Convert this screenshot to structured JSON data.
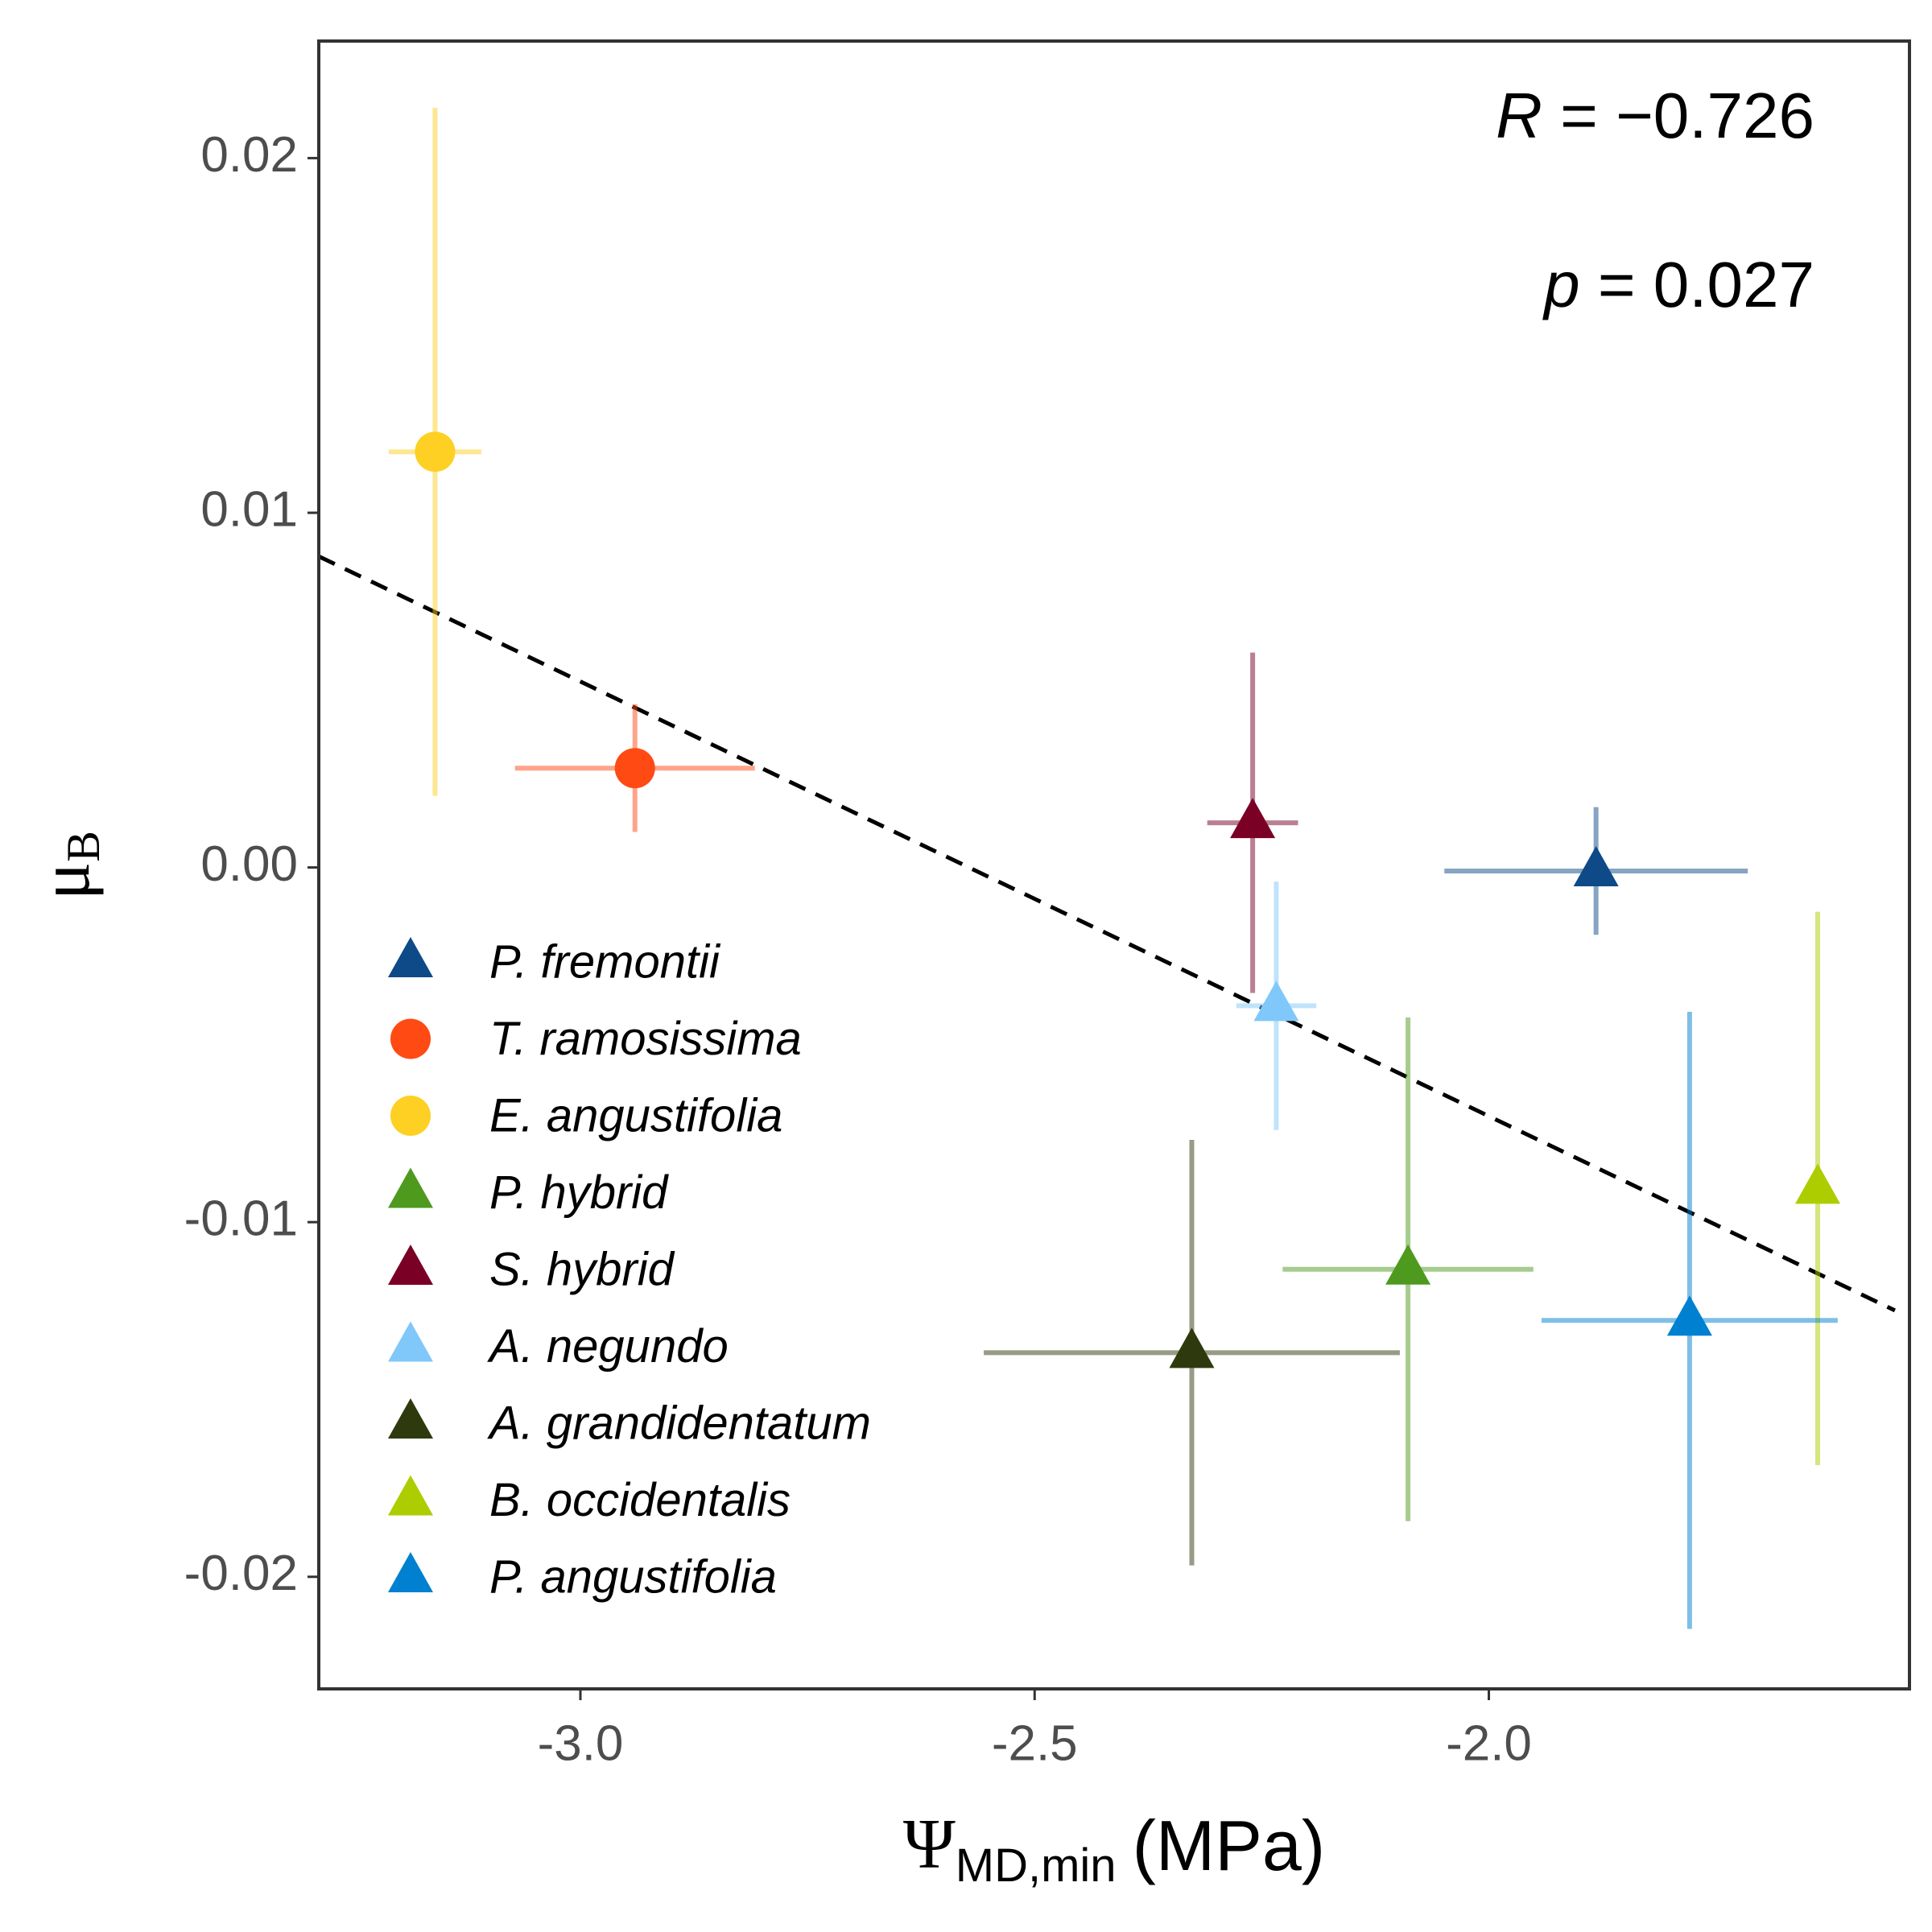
{
  "chart_data": {
    "type": "scatter",
    "x_label": {
      "symbol": "Ψ",
      "sub": "MD,min",
      "suffix": "(MPa)"
    },
    "y_label": {
      "symbol": "μ",
      "sub": "B"
    },
    "annotations": [
      {
        "symbol": "R",
        "text": "= −0.726"
      },
      {
        "symbol": "p",
        "text": "= 0.027"
      }
    ],
    "xlim": [
      -3.288,
      -1.537
    ],
    "ylim": [
      -0.02316,
      0.0233
    ],
    "xticks": [
      {
        "value": -3,
        "label": "-3.0"
      },
      -2.5,
      {
        "value": -2,
        "label": "-2.0"
      }
    ],
    "yticks": [
      0.02,
      0.01,
      {
        "value": 0,
        "label": "0.00"
      },
      -0.01,
      -0.02
    ],
    "grid": false,
    "legend_position": "bottom-left",
    "fit_line": {
      "x": [
        -3.288,
        -1.553
      ],
      "y": [
        0.00877,
        -0.01249
      ],
      "color": "#000000",
      "dashed": true
    },
    "series": [
      {
        "name": "P. fremontii",
        "color": "#0d4a87",
        "marker": "triangle",
        "x": [
          -1.882
        ],
        "values": [
          -0.0001
        ],
        "xerr": [
          0.167
        ],
        "yerr": [
          0.0018
        ]
      },
      {
        "name": "T. ramosissima",
        "color": "#ff4a14",
        "marker": "circle",
        "x": [
          -2.94
        ],
        "values": [
          0.0028
        ],
        "xerr": [
          0.132
        ],
        "yerr": [
          0.0018
        ]
      },
      {
        "name": "E. angustifolia",
        "color": "#fdd023",
        "marker": "circle",
        "x": [
          -3.16
        ],
        "values": [
          0.01172
        ],
        "xerr": [
          0.051
        ],
        "yerr": [
          0.0097
        ]
      },
      {
        "name": "P. hybrid",
        "color": "#4e9a1e",
        "marker": "triangle",
        "x": [
          -2.089
        ],
        "values": [
          -0.01133
        ],
        "xerr": [
          0.138
        ],
        "yerr": [
          0.0071
        ]
      },
      {
        "name": "S. hybrid",
        "color": "#7a0026",
        "marker": "triangle",
        "x": [
          -2.26
        ],
        "values": [
          0.00126
        ],
        "xerr": [
          0.05
        ],
        "yerr": [
          0.0048
        ]
      },
      {
        "name": "A. negundo",
        "color": "#80c8fa",
        "marker": "triangle",
        "x": [
          -2.234
        ],
        "values": [
          -0.0039
        ],
        "xerr": [
          0.044
        ],
        "yerr": [
          0.0035
        ]
      },
      {
        "name": "A. grandidentatum",
        "color": "#2e3a0d",
        "marker": "triangle",
        "x": [
          -2.327
        ],
        "values": [
          -0.01368
        ],
        "xerr": [
          0.229
        ],
        "yerr": [
          0.006
        ]
      },
      {
        "name": "B. occidentalis",
        "color": "#aecd00",
        "marker": "triangle",
        "x": [
          -1.638
        ],
        "values": [
          -0.00905
        ],
        "xerr": [
          0.004
        ],
        "yerr": [
          0.0078
        ]
      },
      {
        "name": "P. angustifolia",
        "color": "#0080d0",
        "marker": "triangle",
        "x": [
          -1.779
        ],
        "values": [
          -0.01277
        ],
        "xerr": [
          0.163
        ],
        "yerr": [
          0.0087
        ]
      }
    ]
  }
}
